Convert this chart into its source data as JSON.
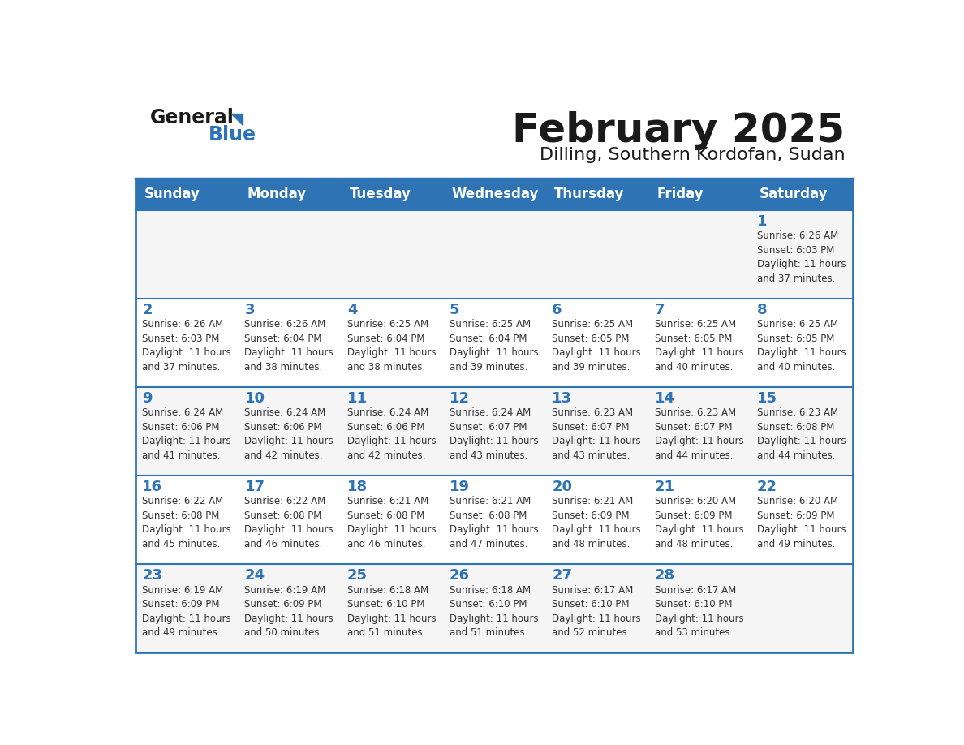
{
  "title": "February 2025",
  "subtitle": "Dilling, Southern Kordofan, Sudan",
  "days_of_week": [
    "Sunday",
    "Monday",
    "Tuesday",
    "Wednesday",
    "Thursday",
    "Friday",
    "Saturday"
  ],
  "header_bg": "#2e74b5",
  "header_text": "#ffffff",
  "cell_bg_odd": "#f5f5f5",
  "cell_bg_even": "#ffffff",
  "border_color": "#2e74b5",
  "title_color": "#1a1a1a",
  "subtitle_color": "#1a1a1a",
  "day_num_color": "#2e74b5",
  "cell_text_color": "#333333",
  "logo_text_color": "#1a1a1a",
  "logo_blue_color": "#2e74b5",
  "calendar": [
    [
      {
        "day": null,
        "info": null
      },
      {
        "day": null,
        "info": null
      },
      {
        "day": null,
        "info": null
      },
      {
        "day": null,
        "info": null
      },
      {
        "day": null,
        "info": null
      },
      {
        "day": null,
        "info": null
      },
      {
        "day": 1,
        "info": "Sunrise: 6:26 AM\nSunset: 6:03 PM\nDaylight: 11 hours\nand 37 minutes."
      }
    ],
    [
      {
        "day": 2,
        "info": "Sunrise: 6:26 AM\nSunset: 6:03 PM\nDaylight: 11 hours\nand 37 minutes."
      },
      {
        "day": 3,
        "info": "Sunrise: 6:26 AM\nSunset: 6:04 PM\nDaylight: 11 hours\nand 38 minutes."
      },
      {
        "day": 4,
        "info": "Sunrise: 6:25 AM\nSunset: 6:04 PM\nDaylight: 11 hours\nand 38 minutes."
      },
      {
        "day": 5,
        "info": "Sunrise: 6:25 AM\nSunset: 6:04 PM\nDaylight: 11 hours\nand 39 minutes."
      },
      {
        "day": 6,
        "info": "Sunrise: 6:25 AM\nSunset: 6:05 PM\nDaylight: 11 hours\nand 39 minutes."
      },
      {
        "day": 7,
        "info": "Sunrise: 6:25 AM\nSunset: 6:05 PM\nDaylight: 11 hours\nand 40 minutes."
      },
      {
        "day": 8,
        "info": "Sunrise: 6:25 AM\nSunset: 6:05 PM\nDaylight: 11 hours\nand 40 minutes."
      }
    ],
    [
      {
        "day": 9,
        "info": "Sunrise: 6:24 AM\nSunset: 6:06 PM\nDaylight: 11 hours\nand 41 minutes."
      },
      {
        "day": 10,
        "info": "Sunrise: 6:24 AM\nSunset: 6:06 PM\nDaylight: 11 hours\nand 42 minutes."
      },
      {
        "day": 11,
        "info": "Sunrise: 6:24 AM\nSunset: 6:06 PM\nDaylight: 11 hours\nand 42 minutes."
      },
      {
        "day": 12,
        "info": "Sunrise: 6:24 AM\nSunset: 6:07 PM\nDaylight: 11 hours\nand 43 minutes."
      },
      {
        "day": 13,
        "info": "Sunrise: 6:23 AM\nSunset: 6:07 PM\nDaylight: 11 hours\nand 43 minutes."
      },
      {
        "day": 14,
        "info": "Sunrise: 6:23 AM\nSunset: 6:07 PM\nDaylight: 11 hours\nand 44 minutes."
      },
      {
        "day": 15,
        "info": "Sunrise: 6:23 AM\nSunset: 6:08 PM\nDaylight: 11 hours\nand 44 minutes."
      }
    ],
    [
      {
        "day": 16,
        "info": "Sunrise: 6:22 AM\nSunset: 6:08 PM\nDaylight: 11 hours\nand 45 minutes."
      },
      {
        "day": 17,
        "info": "Sunrise: 6:22 AM\nSunset: 6:08 PM\nDaylight: 11 hours\nand 46 minutes."
      },
      {
        "day": 18,
        "info": "Sunrise: 6:21 AM\nSunset: 6:08 PM\nDaylight: 11 hours\nand 46 minutes."
      },
      {
        "day": 19,
        "info": "Sunrise: 6:21 AM\nSunset: 6:08 PM\nDaylight: 11 hours\nand 47 minutes."
      },
      {
        "day": 20,
        "info": "Sunrise: 6:21 AM\nSunset: 6:09 PM\nDaylight: 11 hours\nand 48 minutes."
      },
      {
        "day": 21,
        "info": "Sunrise: 6:20 AM\nSunset: 6:09 PM\nDaylight: 11 hours\nand 48 minutes."
      },
      {
        "day": 22,
        "info": "Sunrise: 6:20 AM\nSunset: 6:09 PM\nDaylight: 11 hours\nand 49 minutes."
      }
    ],
    [
      {
        "day": 23,
        "info": "Sunrise: 6:19 AM\nSunset: 6:09 PM\nDaylight: 11 hours\nand 49 minutes."
      },
      {
        "day": 24,
        "info": "Sunrise: 6:19 AM\nSunset: 6:09 PM\nDaylight: 11 hours\nand 50 minutes."
      },
      {
        "day": 25,
        "info": "Sunrise: 6:18 AM\nSunset: 6:10 PM\nDaylight: 11 hours\nand 51 minutes."
      },
      {
        "day": 26,
        "info": "Sunrise: 6:18 AM\nSunset: 6:10 PM\nDaylight: 11 hours\nand 51 minutes."
      },
      {
        "day": 27,
        "info": "Sunrise: 6:17 AM\nSunset: 6:10 PM\nDaylight: 11 hours\nand 52 minutes."
      },
      {
        "day": 28,
        "info": "Sunrise: 6:17 AM\nSunset: 6:10 PM\nDaylight: 11 hours\nand 53 minutes."
      },
      {
        "day": null,
        "info": null
      }
    ]
  ]
}
